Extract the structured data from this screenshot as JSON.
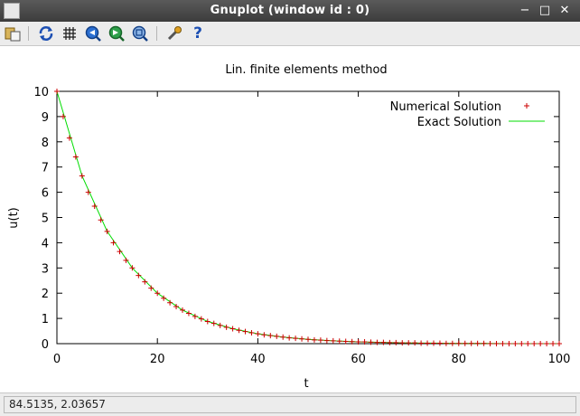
{
  "window": {
    "title": "Gnuplot (window id : 0)"
  },
  "toolbar": {
    "icons": [
      "copy-clipboard-icon",
      "replot-icon",
      "grid-icon",
      "zoom-back-icon",
      "zoom-forward-icon",
      "zoom-autoscale-icon",
      "settings-icon",
      "help-icon"
    ]
  },
  "status": {
    "coords": "84.5135,  2.03657"
  },
  "colors": {
    "numerical": "#cc0000",
    "exact": "#00dd00"
  },
  "chart_data": {
    "type": "line",
    "title": "Lin. finite elements method",
    "xlabel": "t",
    "ylabel": "u(t)",
    "xlim": [
      0,
      100
    ],
    "ylim": [
      0,
      10
    ],
    "xticks": [
      0,
      20,
      40,
      60,
      80,
      100
    ],
    "yticks": [
      0,
      1,
      2,
      3,
      4,
      5,
      6,
      7,
      8,
      9,
      10
    ],
    "legend": "top-right",
    "grid": false,
    "series": [
      {
        "name": "Numerical Solution",
        "style": "points",
        "x": [
          0,
          1.25,
          2.5,
          3.75,
          5,
          6.25,
          7.5,
          8.75,
          10,
          11.25,
          12.5,
          13.75,
          15,
          16.25,
          17.5,
          18.75,
          20,
          21.25,
          22.5,
          23.75,
          25,
          26.25,
          27.5,
          28.75,
          30,
          31.25,
          32.5,
          33.75,
          35,
          36.25,
          37.5,
          38.75,
          40,
          41.25,
          42.5,
          43.75,
          45,
          46.25,
          47.5,
          48.75,
          50,
          51.25,
          52.5,
          53.75,
          55,
          56.25,
          57.5,
          58.75,
          60,
          61.25,
          62.5,
          63.75,
          65,
          66.25,
          67.5,
          68.75,
          70,
          71.25,
          72.5,
          73.75,
          75,
          76.25,
          77.5,
          78.75,
          80,
          81.25,
          82.5,
          83.75,
          85,
          86.25,
          87.5,
          88.75,
          90,
          91.25,
          92.5,
          93.75,
          95,
          96.25,
          97.5,
          98.75,
          100
        ],
        "y": [
          10,
          9,
          8.15,
          7.4,
          6.65,
          6.0,
          5.45,
          4.9,
          4.45,
          4.0,
          3.65,
          3.3,
          3.0,
          2.7,
          2.45,
          2.2,
          2.0,
          1.8,
          1.62,
          1.47,
          1.33,
          1.2,
          1.08,
          0.98,
          0.88,
          0.8,
          0.72,
          0.65,
          0.59,
          0.53,
          0.48,
          0.43,
          0.39,
          0.35,
          0.32,
          0.29,
          0.26,
          0.23,
          0.21,
          0.19,
          0.17,
          0.15,
          0.14,
          0.12,
          0.11,
          0.1,
          0.09,
          0.08,
          0.07,
          0.07,
          0.06,
          0.05,
          0.05,
          0.04,
          0.04,
          0.03,
          0.03,
          0.03,
          0.02,
          0.02,
          0.02,
          0.02,
          0.01,
          0.01,
          0.01,
          0.01,
          0.01,
          0.01,
          0.01,
          0,
          0,
          0,
          0,
          0,
          0,
          0,
          0,
          0,
          0,
          0,
          0
        ]
      },
      {
        "name": "Exact Solution",
        "style": "line",
        "x": [
          0,
          5,
          10,
          15,
          20,
          25,
          30,
          35,
          40,
          45,
          50,
          55,
          60,
          65,
          70,
          75,
          80,
          85,
          90,
          95,
          100
        ],
        "y": [
          10,
          6.65,
          4.45,
          3.0,
          2.0,
          1.33,
          0.88,
          0.59,
          0.39,
          0.26,
          0.17,
          0.11,
          0.07,
          0.05,
          0.03,
          0.02,
          0.01,
          0.01,
          0,
          0,
          0
        ]
      }
    ]
  }
}
